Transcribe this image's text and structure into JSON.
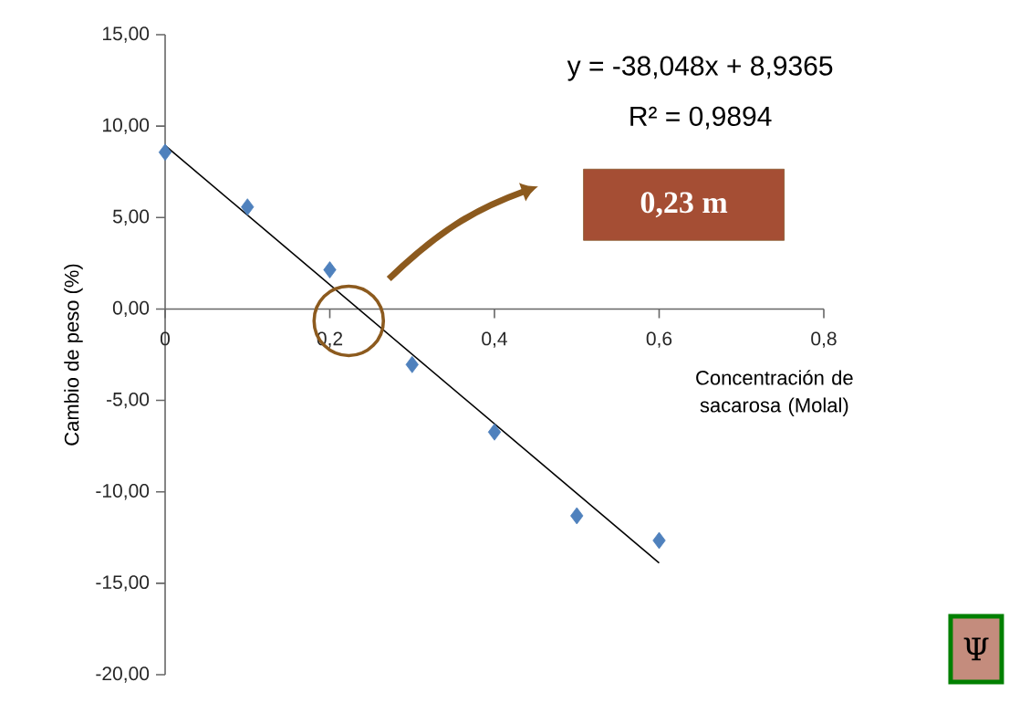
{
  "chart_data": {
    "type": "scatter",
    "xlabel": "Concentración de sacarosa (Molal)",
    "ylabel": "Cambio de peso (%)",
    "x": [
      0,
      0.1,
      0.2,
      0.3,
      0.4,
      0.5,
      0.6
    ],
    "series": [
      {
        "color": "#4f81bd",
        "marker": "diamond",
        "values": [
          8.57,
          5.58,
          2.14,
          -3.04,
          -6.73,
          -11.31,
          -12.66
        ]
      },
      {
        "type": "line",
        "color": "#000000",
        "x": [
          0,
          0.6
        ],
        "values": [
          8.94,
          -13.89
        ]
      }
    ],
    "xlim": [
      0,
      0.8
    ],
    "xticks": [
      0,
      {
        "value": 0.2,
        "label": "0,2"
      },
      {
        "value": 0.4,
        "label": "0,4"
      },
      {
        "value": 0.6,
        "label": "0,6"
      },
      {
        "value": 0.8,
        "label": "0,8"
      }
    ],
    "ylim": [
      -20,
      15
    ],
    "yticks": [
      {
        "value": -20,
        "label": "-20,00"
      },
      {
        "value": -15,
        "label": "-15,00"
      },
      {
        "value": -10,
        "label": "-10,00"
      },
      {
        "value": -5,
        "label": "-5,00"
      },
      {
        "value": 0,
        "label": "0,00"
      },
      {
        "value": 5,
        "label": "5,00"
      },
      {
        "value": 10,
        "label": "10,00"
      },
      {
        "value": 15,
        "label": "15,00"
      }
    ],
    "annotations": [
      "y = -38,048x + 8,9365",
      "R² = 0,9894",
      "0,23 m",
      "Ψ"
    ]
  }
}
